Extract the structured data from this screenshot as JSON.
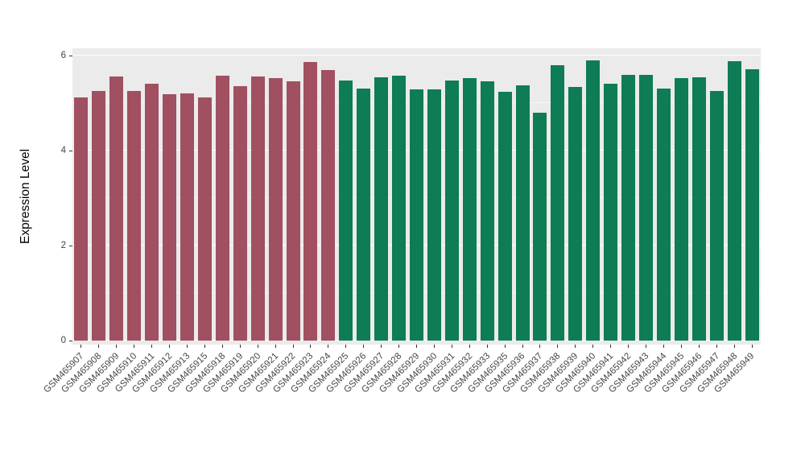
{
  "figure": {
    "background": "#FFFFFF"
  },
  "chart_data": {
    "type": "bar",
    "title": "",
    "xlabel": "",
    "ylabel": "Expression Level",
    "ylim": [
      0,
      6.2
    ],
    "y_ticks": [
      0,
      2,
      4,
      6
    ],
    "grid": true,
    "legend": false,
    "panel_bg": "#EBEBEB",
    "grid_color": "#FFFFFF",
    "group_colors": {
      "group1": "#A05060",
      "group2": "#0E7C55"
    },
    "categories": [
      "GSM465907",
      "GSM465908",
      "GSM465909",
      "GSM465910",
      "GSM465911",
      "GSM465912",
      "GSM465913",
      "GSM465915",
      "GSM465918",
      "GSM465919",
      "GSM465920",
      "GSM465921",
      "GSM465922",
      "GSM465923",
      "GSM465924",
      "GSM465925",
      "GSM465926",
      "GSM465927",
      "GSM465928",
      "GSM465929",
      "GSM465930",
      "GSM465931",
      "GSM465932",
      "GSM465933",
      "GSM465935",
      "GSM465936",
      "GSM465937",
      "GSM465938",
      "GSM465939",
      "GSM465940",
      "GSM465941",
      "GSM465942",
      "GSM465943",
      "GSM465944",
      "GSM465945",
      "GSM465946",
      "GSM465947",
      "GSM465948",
      "GSM465949"
    ],
    "values": [
      5.12,
      5.25,
      5.56,
      5.25,
      5.4,
      5.18,
      5.2,
      5.12,
      5.58,
      5.35,
      5.56,
      5.52,
      5.46,
      5.86,
      5.7,
      5.48,
      5.3,
      5.54,
      5.58,
      5.28,
      5.28,
      5.48,
      5.52,
      5.45,
      5.24,
      5.38,
      4.8,
      5.8,
      5.34,
      5.9,
      5.4,
      5.6,
      5.6,
      5.3,
      5.52,
      5.55,
      5.25,
      5.88,
      5.72
    ],
    "bar_groups": [
      "group1",
      "group1",
      "group1",
      "group1",
      "group1",
      "group1",
      "group1",
      "group1",
      "group1",
      "group1",
      "group1",
      "group1",
      "group1",
      "group1",
      "group1",
      "group2",
      "group2",
      "group2",
      "group2",
      "group2",
      "group2",
      "group2",
      "group2",
      "group2",
      "group2",
      "group2",
      "group2",
      "group2",
      "group2",
      "group2",
      "group2",
      "group2",
      "group2",
      "group2",
      "group2",
      "group2",
      "group2",
      "group2",
      "group2"
    ]
  }
}
